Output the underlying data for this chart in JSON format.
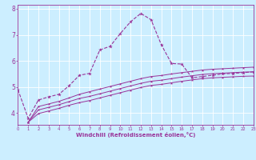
{
  "xlabel": "Windchill (Refroidissement éolien,°C)",
  "ylabel": "",
  "bg_color": "#cceeff",
  "line_color": "#993399",
  "grid_color": "#ffffff",
  "xmin": 0,
  "xmax": 23,
  "ymin": 3.55,
  "ymax": 8.15,
  "yticks": [
    4,
    5,
    6,
    7,
    8
  ],
  "xticks": [
    0,
    1,
    2,
    3,
    4,
    5,
    6,
    7,
    8,
    9,
    10,
    11,
    12,
    13,
    14,
    15,
    16,
    17,
    18,
    19,
    20,
    21,
    22,
    23
  ],
  "line1_x": [
    0,
    1,
    2,
    3,
    4,
    5,
    6,
    7,
    8,
    9,
    10,
    11,
    12,
    13,
    14,
    15,
    16,
    17,
    18,
    19,
    20,
    21,
    22,
    23
  ],
  "line1_y": [
    4.9,
    3.8,
    4.5,
    4.62,
    4.72,
    5.05,
    5.45,
    5.52,
    6.42,
    6.56,
    7.05,
    7.5,
    7.82,
    7.58,
    6.62,
    5.9,
    5.88,
    5.35,
    5.4,
    5.45,
    5.5,
    5.52,
    5.55,
    5.58
  ],
  "line2_x": [
    1,
    2,
    3,
    4,
    5,
    6,
    7,
    8,
    9,
    10,
    11,
    12,
    13,
    14,
    15,
    16,
    17,
    18,
    19,
    20,
    21,
    22,
    23
  ],
  "line2_y": [
    3.65,
    4.25,
    4.35,
    4.45,
    4.58,
    4.72,
    4.82,
    4.92,
    5.02,
    5.12,
    5.22,
    5.32,
    5.4,
    5.44,
    5.5,
    5.55,
    5.6,
    5.65,
    5.68,
    5.7,
    5.72,
    5.74,
    5.76
  ],
  "line3_x": [
    1,
    2,
    3,
    4,
    5,
    6,
    7,
    8,
    9,
    10,
    11,
    12,
    13,
    14,
    15,
    16,
    17,
    18,
    19,
    20,
    21,
    22,
    23
  ],
  "line3_y": [
    3.65,
    4.12,
    4.22,
    4.32,
    4.44,
    4.56,
    4.64,
    4.74,
    4.84,
    4.94,
    5.04,
    5.14,
    5.22,
    5.26,
    5.32,
    5.38,
    5.43,
    5.48,
    5.51,
    5.53,
    5.55,
    5.57,
    5.58
  ],
  "line4_x": [
    1,
    2,
    3,
    4,
    5,
    6,
    7,
    8,
    9,
    10,
    11,
    12,
    13,
    14,
    15,
    16,
    17,
    18,
    19,
    20,
    21,
    22,
    23
  ],
  "line4_y": [
    3.65,
    3.98,
    4.08,
    4.18,
    4.3,
    4.4,
    4.48,
    4.58,
    4.68,
    4.78,
    4.88,
    4.98,
    5.06,
    5.1,
    5.16,
    5.22,
    5.27,
    5.32,
    5.35,
    5.37,
    5.39,
    5.41,
    5.42
  ]
}
